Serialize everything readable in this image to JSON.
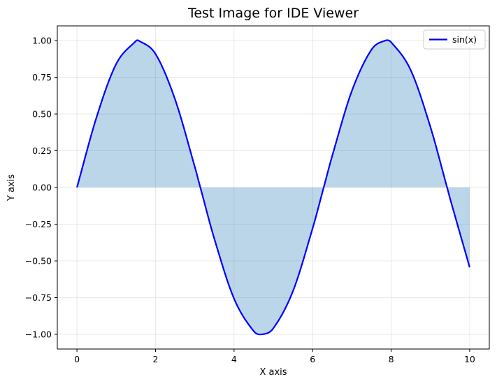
{
  "chart_data": {
    "type": "line",
    "title": "Test Image for IDE Viewer",
    "xlabel": "X axis",
    "ylabel": "Y axis",
    "xlim": [
      -0.5,
      10.5
    ],
    "ylim": [
      -1.1,
      1.1
    ],
    "xticks": [
      0,
      2,
      4,
      6,
      8,
      10
    ],
    "xtick_labels": [
      "0",
      "2",
      "4",
      "6",
      "8",
      "10"
    ],
    "yticks": [
      1.0,
      0.75,
      0.5,
      0.25,
      0.0,
      -0.25,
      -0.5,
      -0.75,
      -1.0
    ],
    "ytick_labels": [
      "1.00",
      "0.75",
      "0.50",
      "0.25",
      "0.00",
      "−0.25",
      "−0.50",
      "−0.75",
      "−1.00"
    ],
    "grid": true,
    "legend_position": "top-right",
    "series": [
      {
        "name": "sin(x)",
        "color": "#0000ff",
        "fill_to_zero": true,
        "fill_color": "#1f77b4",
        "x": [
          0.0,
          0.5,
          1.0,
          1.5,
          1.571,
          2.0,
          2.5,
          3.0,
          3.142,
          3.5,
          4.0,
          4.5,
          4.712,
          5.0,
          5.5,
          6.0,
          6.283,
          6.5,
          7.0,
          7.5,
          7.854,
          8.0,
          8.5,
          9.0,
          9.425,
          9.5,
          10.0
        ],
        "y": [
          0.0,
          0.479,
          0.841,
          0.997,
          1.0,
          0.909,
          0.598,
          0.141,
          0.0,
          -0.351,
          -0.757,
          -0.978,
          -1.0,
          -0.959,
          -0.706,
          -0.279,
          0.0,
          0.215,
          0.657,
          0.938,
          1.0,
          0.989,
          0.798,
          0.412,
          0.0,
          -0.075,
          -0.544
        ]
      }
    ]
  }
}
